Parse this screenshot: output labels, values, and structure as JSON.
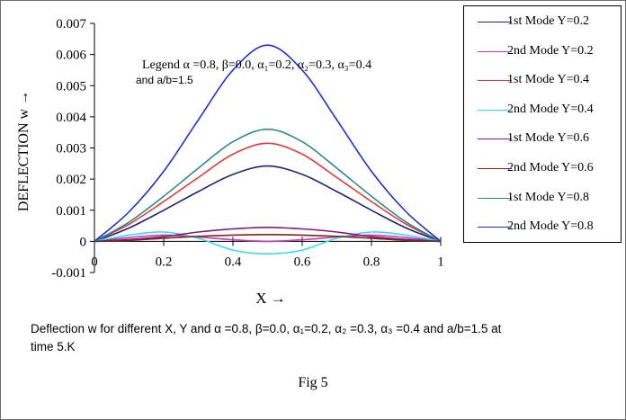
{
  "chart_data": {
    "type": "line",
    "ylabel": "DEFLECTION w →",
    "xlabel": "X →",
    "xlim": [
      0,
      1
    ],
    "ylim": [
      -0.001,
      0.007
    ],
    "x_ticks": [
      "0",
      "0.2",
      "0.4",
      "0.6",
      "0.8",
      "1"
    ],
    "y_ticks": [
      "-0.001",
      "0",
      "0.001",
      "0.002",
      "0.003",
      "0.004",
      "0.005",
      "0.006",
      "0.007"
    ],
    "grid": false,
    "legend_position": "right",
    "x": [
      0,
      0.1,
      0.2,
      0.3,
      0.4,
      0.5,
      0.6,
      0.7,
      0.8,
      0.9,
      1
    ],
    "series": [
      {
        "name": "1st Mode Y=0.2",
        "color": "#1a237e",
        "values": [
          0,
          0.00043,
          0.001,
          0.0016,
          0.00215,
          0.00242,
          0.00215,
          0.0016,
          0.001,
          0.00043,
          0
        ]
      },
      {
        "name": "2nd Mode Y=0.2",
        "color": "#cc33cc",
        "values": [
          0,
          0.00012,
          0.0002,
          0.00014,
          5e-05,
          0,
          5e-05,
          0.00014,
          0.0002,
          0.00012,
          0
        ]
      },
      {
        "name": "1st Mode Y=0.4",
        "color": "#e53935",
        "values": [
          0,
          0.00055,
          0.00128,
          0.00205,
          0.0028,
          0.00315,
          0.0028,
          0.00205,
          0.00128,
          0.00055,
          0
        ]
      },
      {
        "name": "2nd Mode Y=0.4",
        "color": "#33ddee",
        "values": [
          0,
          0.0002,
          0.0003,
          0.0001,
          -0.00028,
          -0.0004,
          -0.00028,
          0.0001,
          0.0003,
          0.0002,
          0
        ]
      },
      {
        "name": "1st Mode Y=0.6",
        "color": "#7b1f7b",
        "values": [
          0,
          6e-05,
          0.00015,
          0.0003,
          0.0004,
          0.00045,
          0.0004,
          0.0003,
          0.00015,
          6e-05,
          0
        ]
      },
      {
        "name": "2nd Mode Y=0.6",
        "color": "#7a2a12",
        "values": [
          0,
          3e-05,
          0.0001,
          0.00016,
          0.0002,
          0.00022,
          0.0002,
          0.00016,
          0.0001,
          3e-05,
          0
        ]
      },
      {
        "name": "1st Mode Y=0.8",
        "color": "#2a8a8a",
        "values": [
          0,
          0.00062,
          0.00145,
          0.00235,
          0.0032,
          0.0036,
          0.0032,
          0.00235,
          0.00145,
          0.00062,
          0
        ]
      },
      {
        "name": "2nd Mode Y=0.8",
        "color": "#1c2fd6",
        "values": [
          0,
          0.00095,
          0.00225,
          0.0039,
          0.0055,
          0.0063,
          0.0055,
          0.0039,
          0.00225,
          0.00095,
          0
        ]
      }
    ],
    "annotation": {
      "line1": "Legend α =0.8, β=0.0, α₁=0.2, α₂=0.3, α₃=0.4",
      "line2": "and a/b=1.5"
    }
  },
  "caption": {
    "line1": "Deflection w for different X, Y and α =0.8, β=0.0, α₁=0.2, α₂ =0.3, α₃ =0.4 and a/b=1.5 at",
    "line2": "time 5.K"
  },
  "figure_label": "Fig 5"
}
